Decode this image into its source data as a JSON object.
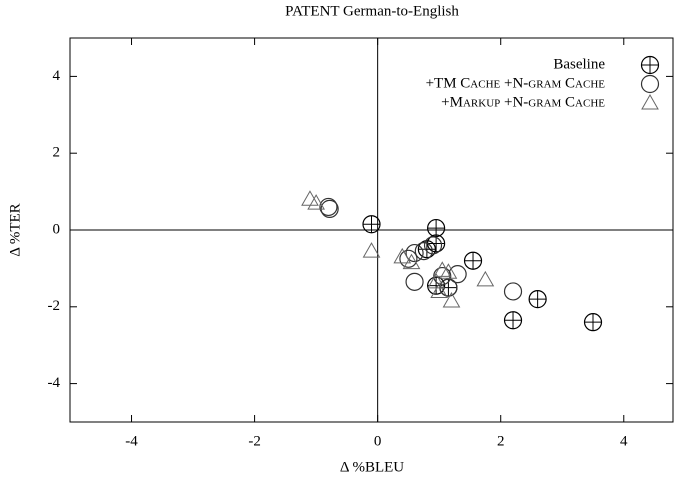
{
  "chart_data": {
    "type": "scatter",
    "title": "PATENT German-to-English",
    "x_label": "Δ %BLEU",
    "y_label": "Δ %TER",
    "xlim": [
      -5,
      4.8
    ],
    "ylim": [
      -5,
      5
    ],
    "xticks": [
      -4,
      -2,
      0,
      2,
      4
    ],
    "yticks": [
      -4,
      -2,
      0,
      2,
      4
    ],
    "zero_lines": true,
    "legend": "upper right",
    "series": [
      {
        "name": "Baseline",
        "marker": "circle-plus",
        "color": "#000000",
        "x": [
          -0.1,
          0.95,
          0.95,
          0.8,
          1.55,
          0.95,
          1.15,
          2.2,
          2.6,
          3.5
        ],
        "values": [
          0.15,
          0.05,
          -0.35,
          -0.5,
          -0.8,
          -1.45,
          -1.5,
          -2.35,
          -1.8,
          -2.4
        ]
      },
      {
        "name": "+TM Cache +N-gram Cache",
        "marker": "circle",
        "color": "#333333",
        "x": [
          -0.8,
          -0.78,
          0.5,
          0.6,
          0.75,
          0.9,
          0.6,
          1.05,
          1.3,
          1.15,
          2.2
        ],
        "values": [
          0.6,
          0.55,
          -0.75,
          -0.6,
          -0.55,
          -0.4,
          -1.35,
          -1.2,
          -1.15,
          -1.5,
          -1.6
        ]
      },
      {
        "name": "+Markup +N-gram Cache",
        "marker": "triangle",
        "color": "#666666",
        "x": [
          -1.1,
          -1.0,
          -0.1,
          0.4,
          0.55,
          1.05,
          1.15,
          1.0,
          1.2,
          1.75,
          0.95
        ],
        "values": [
          0.8,
          0.7,
          -0.55,
          -0.7,
          -0.85,
          -1.05,
          -1.1,
          -1.6,
          -1.85,
          -1.3,
          -1.35
        ]
      }
    ]
  }
}
